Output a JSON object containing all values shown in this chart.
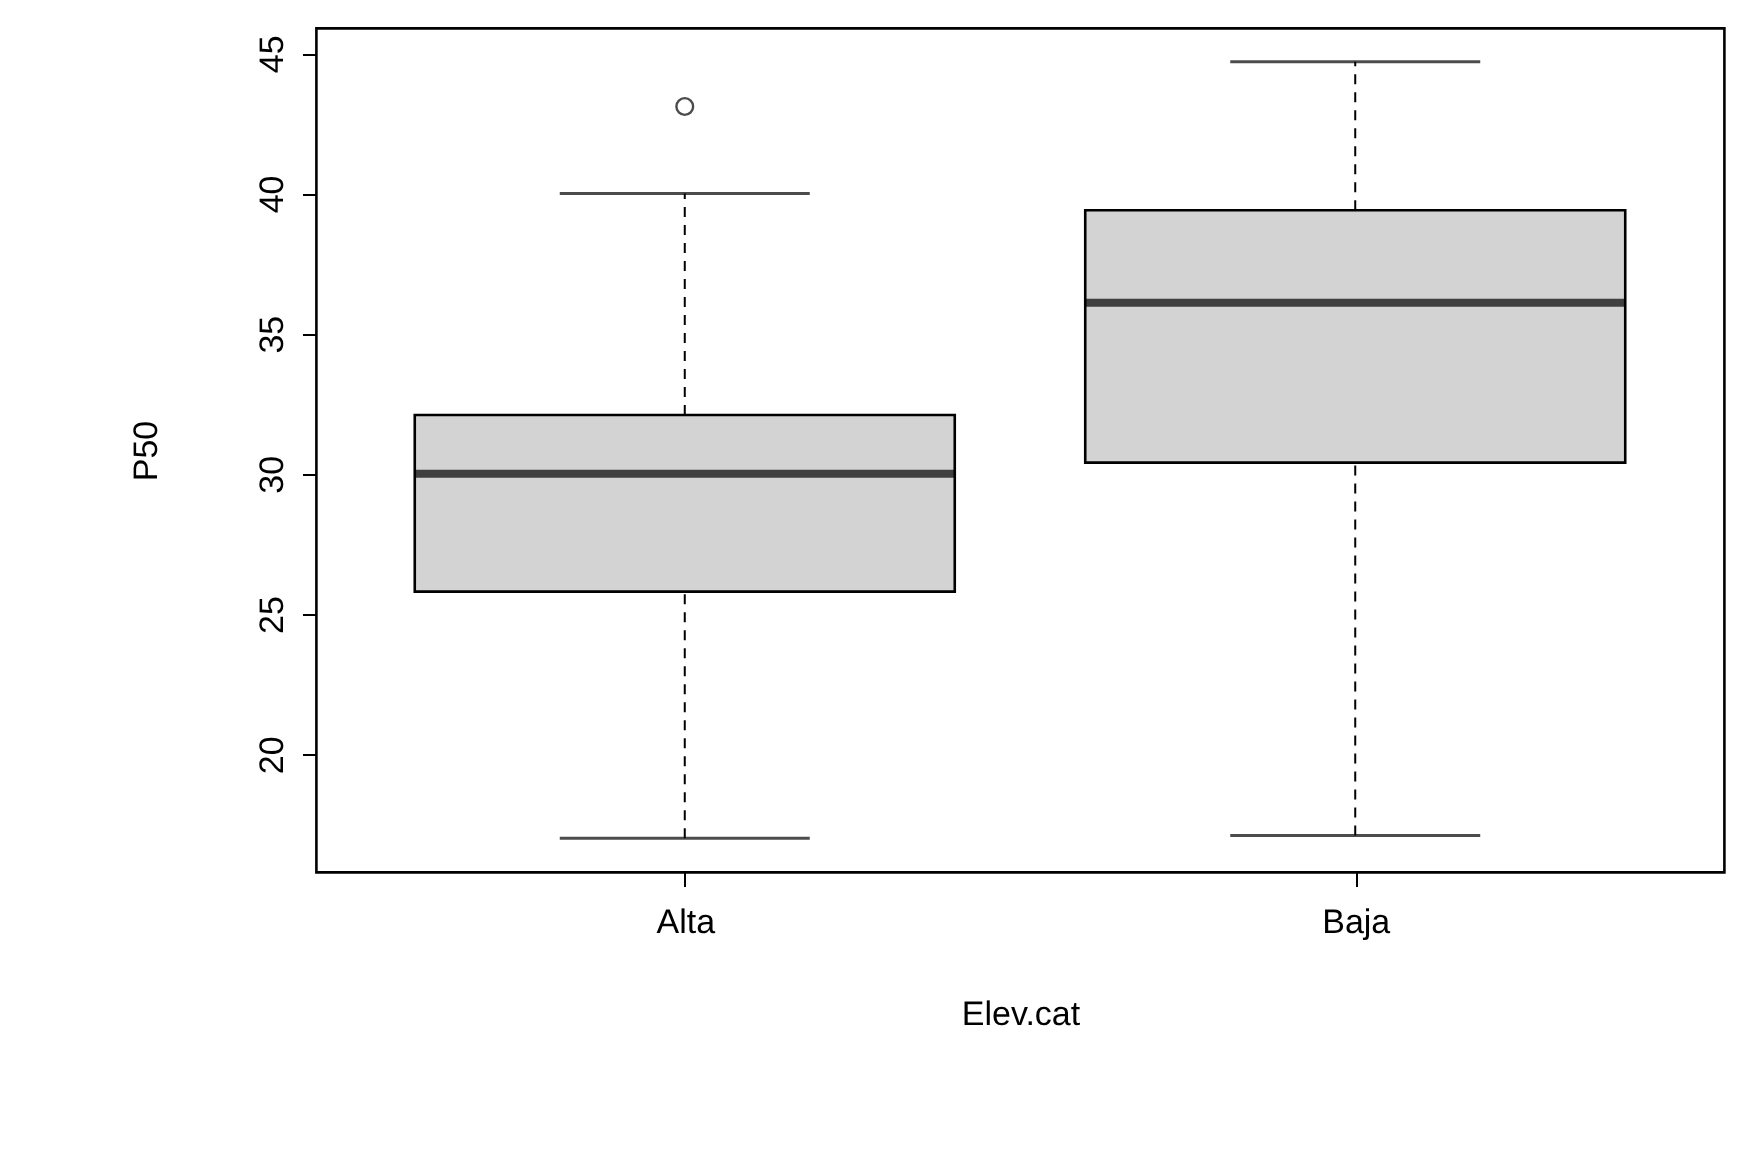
{
  "chart_data": {
    "type": "box",
    "xlabel": "Elev.cat",
    "ylabel": "P50",
    "categories": [
      "Alta",
      "Baja"
    ],
    "boxes": [
      {
        "low": 17.0,
        "q1": 25.8,
        "median": 30.0,
        "q3": 32.1,
        "high": 40.0,
        "outliers": [
          43.1
        ]
      },
      {
        "low": 17.1,
        "q1": 30.4,
        "median": 36.1,
        "q3": 39.4,
        "high": 44.7
      }
    ],
    "color": "#d3d3d3",
    "ylim": [
      15.8,
      45.9
    ],
    "yticks": [
      20,
      25,
      30,
      35,
      40,
      45
    ]
  }
}
